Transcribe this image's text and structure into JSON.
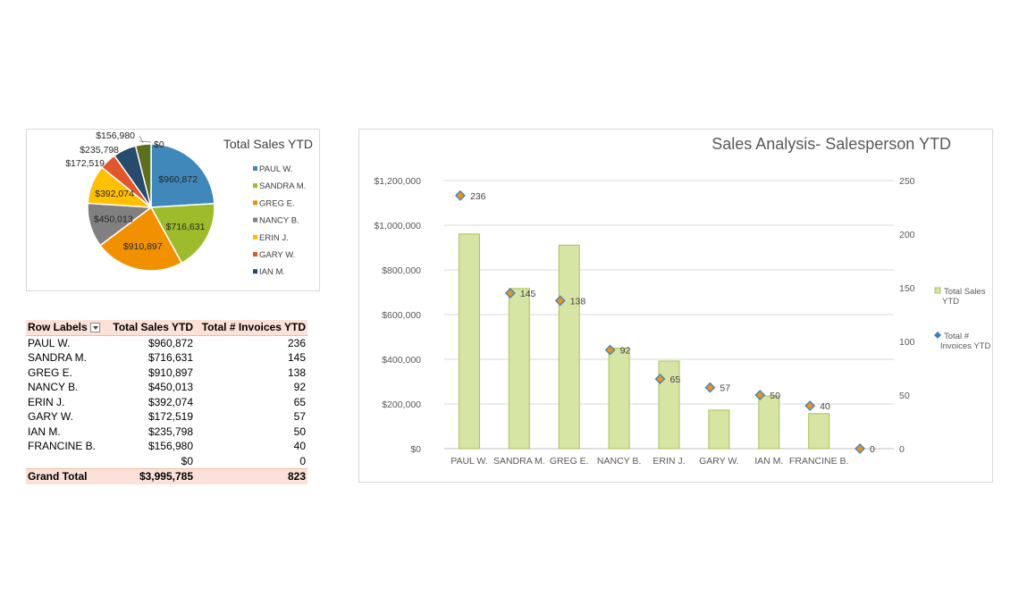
{
  "pivot": {
    "headers": [
      "Row Labels",
      "Total Sales YTD",
      "Total # Invoices YTD"
    ],
    "rows": [
      {
        "label": "PAUL W.",
        "sales": "$960,872",
        "invoices": "236"
      },
      {
        "label": "SANDRA M.",
        "sales": "$716,631",
        "invoices": "145"
      },
      {
        "label": "GREG E.",
        "sales": "$910,897",
        "invoices": "138"
      },
      {
        "label": "NANCY B.",
        "sales": "$450,013",
        "invoices": "92"
      },
      {
        "label": "ERIN J.",
        "sales": "$392,074",
        "invoices": "65"
      },
      {
        "label": "GARY W.",
        "sales": "$172,519",
        "invoices": "57"
      },
      {
        "label": "IAN M.",
        "sales": "$235,798",
        "invoices": "50"
      },
      {
        "label": "FRANCINE B.",
        "sales": "$156,980",
        "invoices": "40"
      },
      {
        "label": "",
        "sales": "$0",
        "invoices": "0"
      }
    ],
    "total": {
      "label": "Grand Total",
      "sales": "$3,995,785",
      "invoices": "823"
    }
  },
  "chart_data": [
    {
      "type": "pie",
      "title": "Total Sales YTD",
      "categories": [
        "PAUL W.",
        "SANDRA M.",
        "GREG E.",
        "NANCY B.",
        "ERIN J.",
        "GARY W.",
        "IAN M.",
        "FRANCINE B.",
        ""
      ],
      "values": [
        960872,
        716631,
        910897,
        450013,
        392074,
        172519,
        235798,
        156980,
        0
      ],
      "data_labels": [
        "$960,872",
        "$716,631",
        "$910,897",
        "$450,013",
        "$392,074",
        "$172,519",
        "$235,798",
        "$156,980",
        "$0"
      ],
      "legend": [
        "PAUL W.",
        "SANDRA M.",
        "GREG E.",
        "NANCY B.",
        "ERIN J.",
        "GARY W.",
        "IAN M."
      ],
      "legend_position": "right",
      "colors": [
        "#3f88b9",
        "#9ebb2b",
        "#f29100",
        "#808080",
        "#ffc000",
        "#e2562b",
        "#264b6c",
        "#5d6e1e",
        "#a6a6a6"
      ]
    },
    {
      "type": "bar",
      "title": "Sales Analysis- Salesperson YTD",
      "categories": [
        "PAUL W.",
        "SANDRA M.",
        "GREG E.",
        "NANCY B.",
        "ERIN J.",
        "GARY W.",
        "IAN M.",
        "FRANCINE B.",
        ""
      ],
      "series": [
        {
          "name": "Total Sales YTD",
          "kind": "bar",
          "axis": "left",
          "values": [
            960872,
            716631,
            910897,
            450013,
            392074,
            172519,
            235798,
            156980,
            0
          ]
        },
        {
          "name": "Total # Invoices YTD",
          "kind": "marker",
          "axis": "right",
          "values": [
            236,
            145,
            138,
            92,
            65,
            57,
            50,
            40,
            0
          ],
          "data_labels": [
            "236",
            "145",
            "138",
            "92",
            "65",
            "57",
            "50",
            "40",
            "0"
          ]
        }
      ],
      "y_left": {
        "min": 0,
        "max": 1200000,
        "step": 200000,
        "tick_labels": [
          "$0",
          "$200,000",
          "$400,000",
          "$600,000",
          "$800,000",
          "$1,000,000",
          "$1,200,000"
        ]
      },
      "y_right": {
        "min": 0,
        "max": 250,
        "step": 50,
        "tick_labels": [
          "0",
          "50",
          "100",
          "150",
          "200",
          "250"
        ]
      },
      "legend": [
        {
          "name_lines": [
            "Total Sales",
            "YTD"
          ]
        },
        {
          "name_lines": [
            "Total #",
            "Invoices YTD"
          ]
        }
      ],
      "legend_position": "right",
      "grid": true,
      "colors": {
        "bar_fill": "#d6e4a4",
        "bar_stroke": "#a9c25a",
        "marker_fill": "#e89321",
        "marker_stroke": "#3f7fbf",
        "grid": "#d9d9d9",
        "title": "#595959"
      }
    }
  ]
}
